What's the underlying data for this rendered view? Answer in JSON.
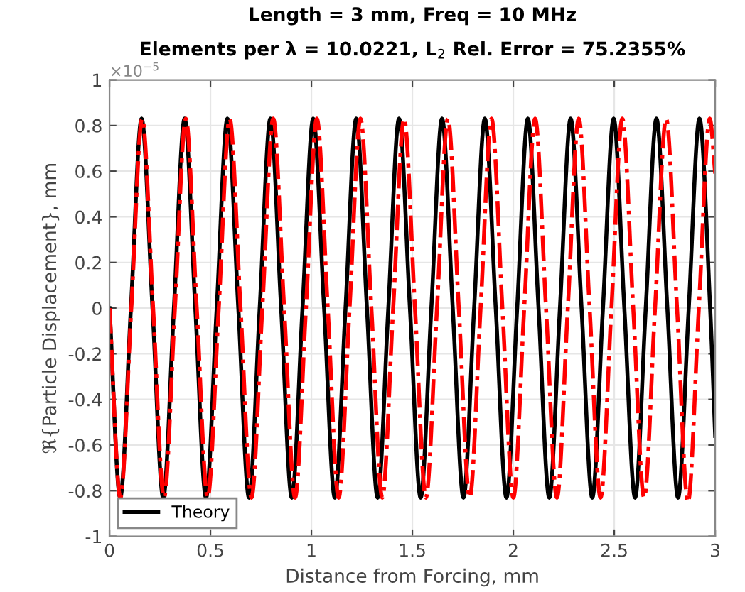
{
  "chart_data": {
    "type": "line",
    "title": "Length = 3 mm, Freq = 10 MHz",
    "subtitle": "Elements per λ = 10.0221, L$_{2}$ Rel. Error = 75.2355%",
    "xlabel": "Distance from Forcing, mm",
    "ylabel": "ℜ{Particle Displacement}, mm",
    "annotations": [
      "×10$^{−5}$"
    ],
    "xlim": [
      0,
      3
    ],
    "xticks": [
      0,
      0.5,
      1,
      1.5,
      2,
      2.5,
      3
    ],
    "ylim": [
      -1,
      1
    ],
    "yticks": [
      -1,
      -0.8,
      -0.6,
      -0.4,
      -0.2,
      0,
      0.2,
      0.4,
      0.6,
      0.8,
      1
    ],
    "grid": true,
    "legend": "bottom left",
    "marker": "none",
    "series": [
      {
        "name": "Theory",
        "color": "#000000",
        "line_style": "solid",
        "x": [
          0,
          0.053,
          0.106,
          0.159,
          0.213,
          0.266,
          0.319,
          0.372,
          0.425,
          0.478,
          0.531,
          0.584,
          0.638,
          0.691,
          0.744,
          0.797,
          0.85,
          0.903,
          0.956,
          1.009,
          1.063,
          1.116,
          1.169,
          1.222,
          1.275,
          1.328,
          1.381,
          1.434,
          1.488,
          1.541,
          1.594,
          1.647,
          1.7,
          1.753,
          1.806,
          1.859,
          1.913,
          1.966,
          2.019,
          2.072,
          2.125,
          2.178,
          2.231,
          2.284,
          2.338,
          2.391,
          2.444,
          2.497,
          2.55,
          2.603,
          2.656,
          2.709,
          2.763,
          2.816,
          2.869,
          2.922,
          2.975,
          3
        ],
        "values": [
          0,
          -0.83,
          0,
          0.83,
          0,
          -0.83,
          0,
          0.83,
          0,
          -0.83,
          0,
          0.83,
          0,
          -0.83,
          0,
          0.83,
          0,
          -0.83,
          0,
          0.83,
          0,
          -0.83,
          0,
          0.83,
          0,
          -0.83,
          0,
          0.83,
          0,
          -0.83,
          0,
          0.83,
          0,
          -0.83,
          0,
          0.83,
          0,
          -0.83,
          0,
          0.83,
          0,
          -0.83,
          0,
          0.83,
          0,
          -0.83,
          0,
          0.83,
          0,
          -0.83,
          0,
          0.83,
          0,
          -0.83,
          0,
          0.83,
          0,
          -0.56
        ]
      },
      {
        "color": "#ff0000",
        "line_style": "dashdot",
        "x": [
          0,
          0.054,
          0.108,
          0.162,
          0.216,
          0.27,
          0.324,
          0.378,
          0.432,
          0.486,
          0.541,
          0.595,
          0.649,
          0.703,
          0.757,
          0.811,
          0.865,
          0.919,
          0.973,
          1.027,
          1.081,
          1.135,
          1.189,
          1.243,
          1.297,
          1.351,
          1.405,
          1.459,
          1.513,
          1.567,
          1.622,
          1.676,
          1.73,
          1.784,
          1.838,
          1.892,
          1.946,
          2.0,
          2.054,
          2.108,
          2.162,
          2.216,
          2.27,
          2.324,
          2.378,
          2.432,
          2.486,
          2.54,
          2.594,
          2.648,
          2.702,
          2.757,
          2.811,
          2.865,
          2.919,
          2.973,
          3
        ],
        "values": [
          0,
          -0.83,
          0,
          0.83,
          0,
          -0.83,
          0,
          0.83,
          0,
          -0.83,
          0,
          0.83,
          0,
          -0.83,
          0,
          0.83,
          0,
          -0.83,
          0,
          0.83,
          0,
          -0.83,
          0,
          0.83,
          0,
          -0.83,
          0,
          0.83,
          0,
          -0.83,
          0,
          0.83,
          0,
          -0.83,
          0,
          0.83,
          0,
          -0.83,
          0,
          0.83,
          0,
          -0.83,
          0,
          0.83,
          0,
          -0.83,
          0,
          0.83,
          0,
          -0.83,
          0,
          0.83,
          0,
          -0.85,
          0,
          0.83,
          0.59
        ]
      }
    ]
  }
}
